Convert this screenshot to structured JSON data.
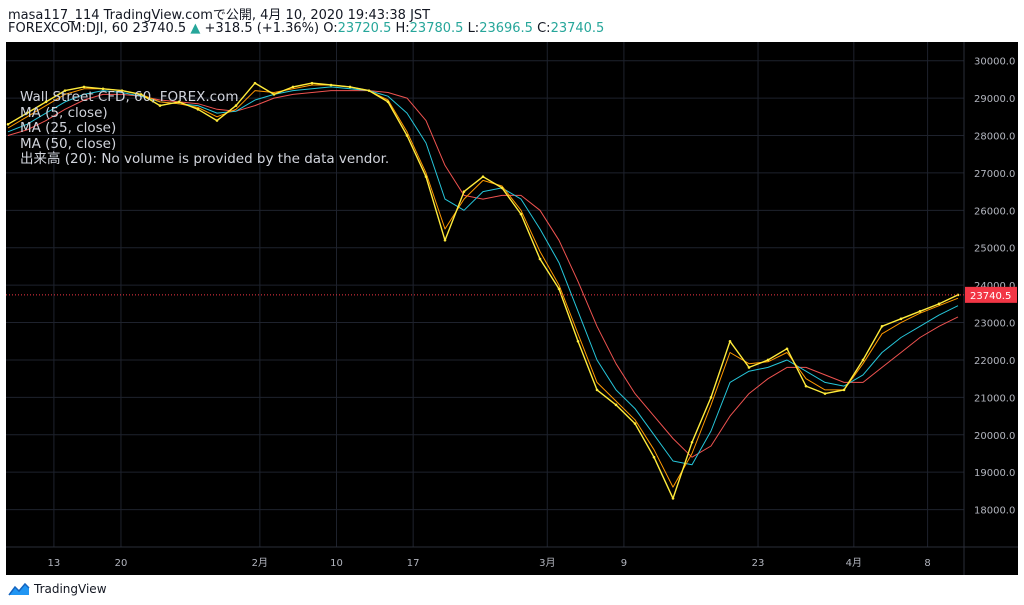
{
  "header": {
    "publish_line": "masa117_114 TradingView.comで公開, 4月 10, 2020 19:43:38 JST",
    "symbol_line": "FOREXCOM:DJI, 60 23740.5",
    "change": "+318.5 (+1.36%)",
    "o_label": "O:",
    "o_value": "23720.5",
    "h_label": "H:",
    "h_value": "23780.5",
    "l_label": "L:",
    "l_value": "23696.5",
    "c_label": "C:",
    "c_value": "23740.5"
  },
  "legend": {
    "title": "Wall Street CFD, 60, FOREX.com",
    "ma5": "MA (5, close)",
    "ma25": "MA (25, close)",
    "ma50": "MA (50, close)",
    "volume_note": "出来高 (20): No volume is provided by the data vendor."
  },
  "footer": {
    "brand": "TradingView"
  },
  "colors": {
    "price": "#ffeb3b",
    "ma5": "#ff9800",
    "ma25": "#26c6da",
    "ma50": "#ef5350",
    "last_price": "#f23645",
    "grid": "#1e222d",
    "axis_text": "#b2b5be"
  },
  "chart_data": {
    "type": "line",
    "title": "Wall Street CFD, 60, FOREX.com",
    "xlabel": "",
    "ylabel": "",
    "ylim": [
      17000,
      30500
    ],
    "x_ticks": [
      "13",
      "20",
      "2月",
      "10",
      "17",
      "3月",
      "9",
      "23",
      "4月",
      "8"
    ],
    "y_ticks": [
      18000,
      19000,
      20000,
      21000,
      22000,
      23000,
      24000,
      25000,
      26000,
      27000,
      28000,
      29000,
      30000
    ],
    "y_tick_labels": [
      "18000.0",
      "19000.0",
      "20000.0",
      "21000.0",
      "22000.0",
      "23000.0",
      "24000.0",
      "25000.0",
      "26000.0",
      "27000.0",
      "28000.0",
      "29000.0",
      "30000.0"
    ],
    "last_price": 23740.5,
    "last_price_label": "23740.5",
    "x": [
      0,
      2,
      4,
      6,
      8,
      10,
      12,
      14,
      16,
      18,
      20,
      22,
      24,
      26,
      28,
      30,
      32,
      34,
      36,
      38,
      40,
      42,
      44,
      46,
      48,
      50,
      52,
      54,
      56,
      58,
      60,
      62,
      64,
      66,
      68,
      70,
      72,
      74,
      76,
      78,
      80,
      82,
      84,
      86,
      88,
      90,
      92,
      94,
      96,
      98,
      100
    ],
    "series": [
      {
        "name": "Close",
        "values": [
          28300,
          28600,
          28900,
          29200,
          29300,
          29250,
          29200,
          29100,
          28800,
          28900,
          28700,
          28400,
          28800,
          29400,
          29100,
          29300,
          29400,
          29350,
          29300,
          29200,
          28900,
          28000,
          26900,
          25200,
          26500,
          26900,
          26600,
          25900,
          24700,
          23900,
          22500,
          21200,
          20800,
          20300,
          19400,
          18300,
          19800,
          21000,
          22500,
          21800,
          22000,
          22300,
          21300,
          21100,
          21200,
          22000,
          22900,
          23100,
          23300,
          23500,
          23740
        ]
      },
      {
        "name": "MA (5, close)",
        "values": [
          28200,
          28500,
          28800,
          29100,
          29250,
          29250,
          29200,
          29100,
          28900,
          28850,
          28750,
          28500,
          28700,
          29200,
          29150,
          29250,
          29350,
          29350,
          29300,
          29200,
          28950,
          28100,
          27000,
          25500,
          26300,
          26800,
          26650,
          26000,
          24900,
          24000,
          22700,
          21400,
          20900,
          20400,
          19600,
          18600,
          19500,
          20800,
          22200,
          21900,
          21950,
          22200,
          21500,
          21200,
          21200,
          21900,
          22700,
          23000,
          23250,
          23450,
          23650
        ]
      },
      {
        "name": "MA (25, close)",
        "values": [
          28100,
          28300,
          28600,
          28900,
          29100,
          29200,
          29150,
          29050,
          28900,
          28850,
          28800,
          28600,
          28650,
          28950,
          29100,
          29200,
          29250,
          29300,
          29250,
          29200,
          29050,
          28600,
          27800,
          26300,
          26000,
          26500,
          26600,
          26300,
          25500,
          24600,
          23300,
          22000,
          21200,
          20700,
          20000,
          19300,
          19200,
          20100,
          21400,
          21700,
          21800,
          22000,
          21700,
          21400,
          21300,
          21600,
          22200,
          22600,
          22900,
          23200,
          23450
        ]
      },
      {
        "name": "MA (50, close)",
        "values": [
          28000,
          28150,
          28400,
          28700,
          28950,
          29100,
          29100,
          29050,
          28950,
          28900,
          28850,
          28700,
          28650,
          28800,
          29000,
          29100,
          29150,
          29200,
          29200,
          29200,
          29150,
          29000,
          28400,
          27200,
          26400,
          26300,
          26400,
          26400,
          26000,
          25200,
          24100,
          22900,
          21900,
          21100,
          20500,
          19900,
          19400,
          19700,
          20500,
          21100,
          21500,
          21800,
          21800,
          21600,
          21400,
          21400,
          21800,
          22200,
          22600,
          22900,
          23150
        ]
      }
    ]
  }
}
